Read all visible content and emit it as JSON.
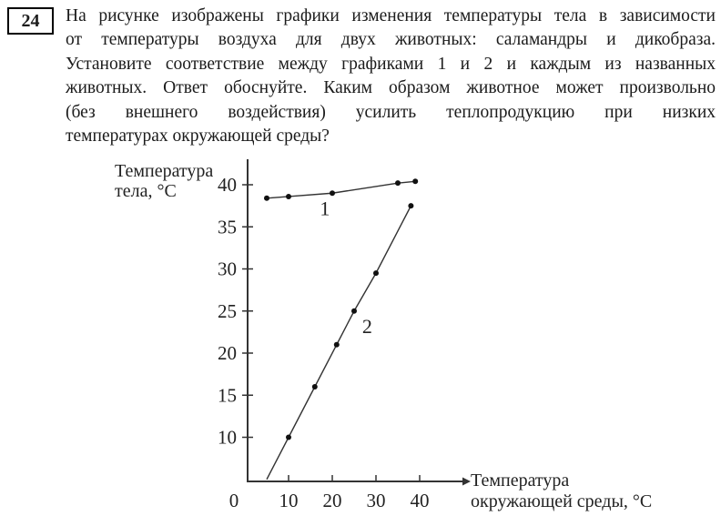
{
  "page": {
    "background": "#ffffff",
    "text_color": "#1b1b1b"
  },
  "question": {
    "number": "24",
    "lines": [
      "На рисунке изображены графики изменения температуры тела в зависимости",
      "от температуры воздуха для двух животных: саламандры и дикобраза.",
      "Установите соответствие между графиками 1 и 2 и каждым из названных",
      "животных. Ответ обоснуйте. Каким образом животное может произвольно",
      "(без внешнего воздействия) усилить теплопродукцию при низких",
      "температурах окружающей среды?"
    ]
  },
  "chart_data": {
    "type": "line",
    "title": "",
    "xlabel": "Температура окружающей среды, °С",
    "ylabel": "Температура тела, °С",
    "xlabel_lines": [
      "Температура",
      "окружающей среды, °С"
    ],
    "ylabel_lines": [
      "Температура",
      "тела, °С"
    ],
    "x_ticks": [
      0,
      10,
      20,
      30,
      40
    ],
    "y_ticks": [
      10,
      15,
      20,
      25,
      30,
      35,
      40
    ],
    "xlim": [
      0,
      50
    ],
    "ylim": [
      5,
      42
    ],
    "grid": false,
    "legend_position": "inline-labels",
    "axis_color": "#333333",
    "point_color": "#111111",
    "series": [
      {
        "name": "1",
        "label": "1",
        "x": [
          5,
          10,
          20,
          35,
          39
        ],
        "y": [
          38.4,
          38.6,
          39.0,
          40.2,
          40.4
        ],
        "label_pos": {
          "x": 18.3,
          "y": 37.2
        }
      },
      {
        "name": "2",
        "label": "2",
        "x": [
          10,
          16,
          21,
          25,
          30,
          38
        ],
        "y": [
          10,
          16,
          21,
          25,
          29.5,
          37.5
        ],
        "line_start": {
          "x": 5,
          "y": 5
        },
        "label_pos": {
          "x": 28,
          "y": 23.2
        }
      }
    ]
  }
}
